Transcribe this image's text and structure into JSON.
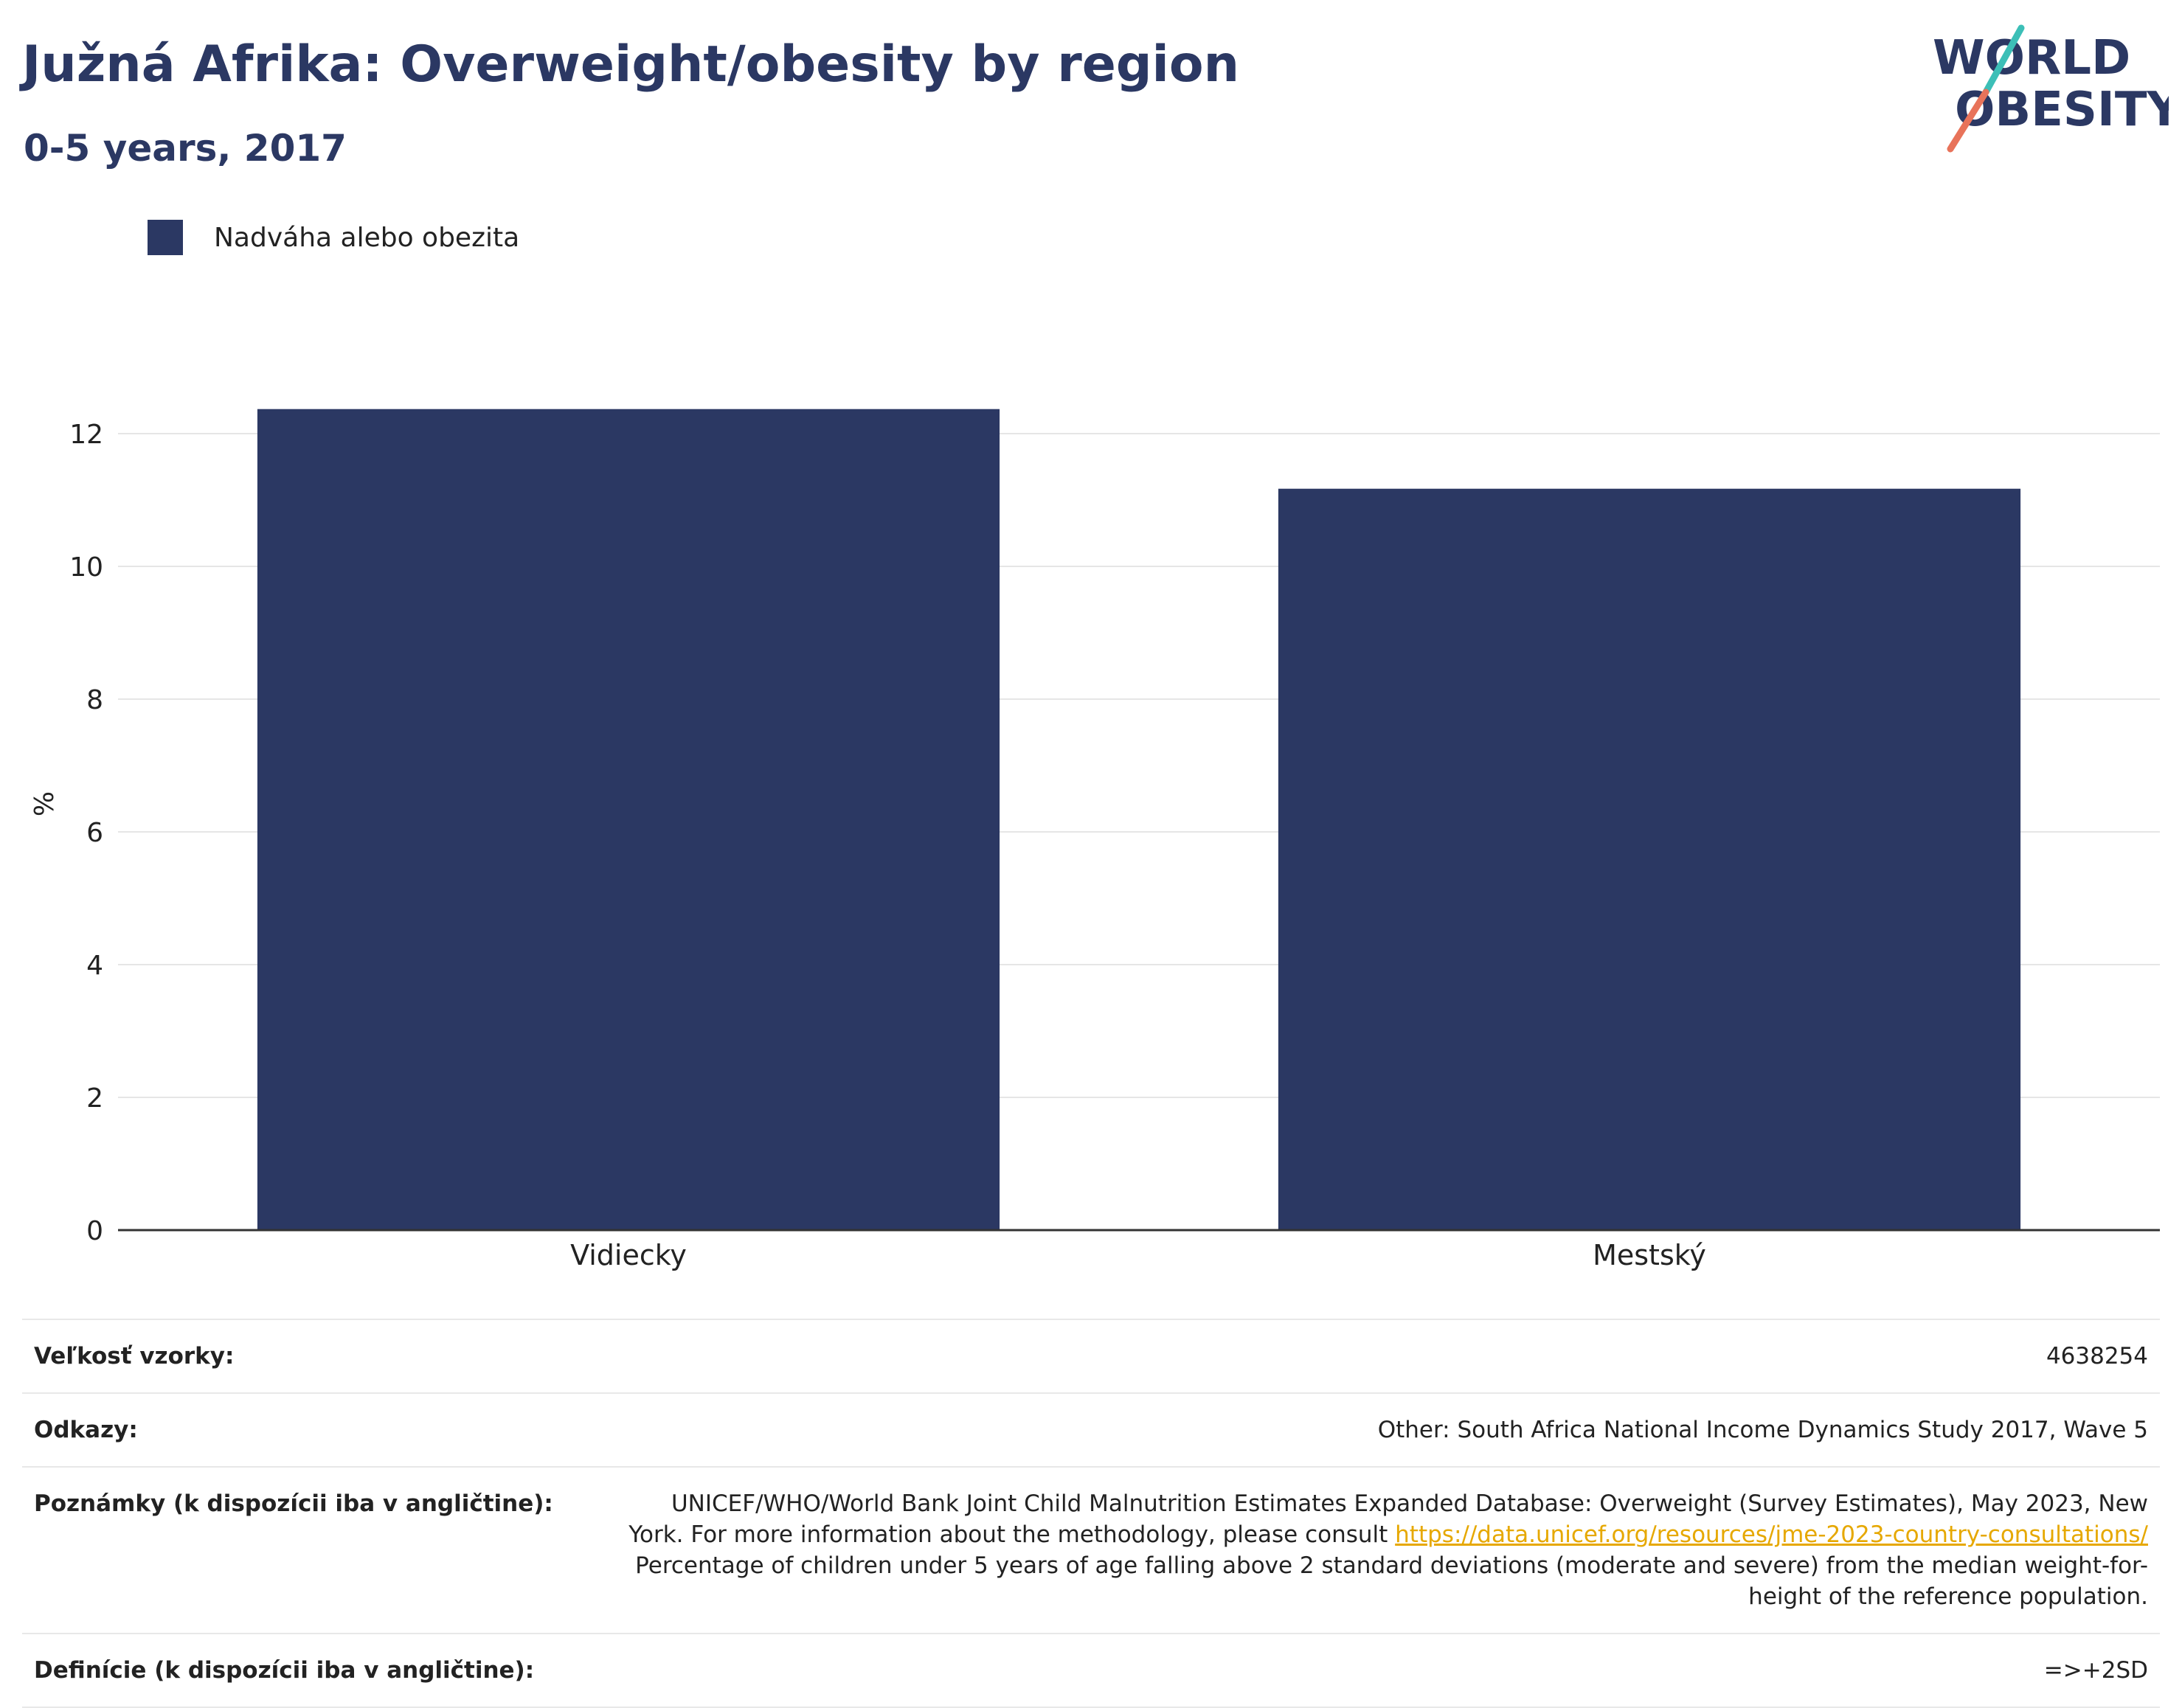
{
  "header": {
    "title": "Južná Afrika: Overweight/obesity by region",
    "subtitle": "0-5 years, 2017"
  },
  "logo": {
    "line1": "WORLD",
    "line2": "OBESITY",
    "accent_teal": "#3cbfb7",
    "accent_coral": "#e8735a"
  },
  "colors": {
    "bar": "#2b3863",
    "grid": "#e6e6e6",
    "axis": "#333333"
  },
  "chart_data": {
    "type": "bar",
    "categories": [
      "Vidiecky",
      "Mestský"
    ],
    "series": [
      {
        "name": "Nadváha alebo obezita",
        "values": [
          12.37,
          11.17
        ]
      }
    ],
    "ylabel": "%",
    "ylim": [
      0,
      13
    ],
    "yticks": [
      0,
      2,
      4,
      6,
      8,
      10,
      12
    ],
    "grid": true,
    "legend": "top-left"
  },
  "info": {
    "sample_label": "Veľkosť vzorky:",
    "sample_value": "4638254",
    "refs_label": "Odkazy:",
    "refs_value": "Other: South Africa National Income Dynamics Study 2017, Wave 5",
    "notes_label": "Poznámky (k dispozícii iba v angličtine):",
    "notes_text1": "UNICEF/WHO/World Bank Joint Child Malnutrition Estimates Expanded Database: Overweight (Survey Estimates), May 2023, New York. For more information about the methodology, please consult ",
    "notes_link": "https://data.unicef.org/resources/jme-2023-country-consultations/",
    "notes_text2": "Percentage of children under 5 years of age falling above 2 standard deviations (moderate and severe) from the median weight-for-height of the reference population.",
    "defs_label": "Definície (k dispozícii iba v angličtine):",
    "defs_value": "=>+2SD"
  }
}
